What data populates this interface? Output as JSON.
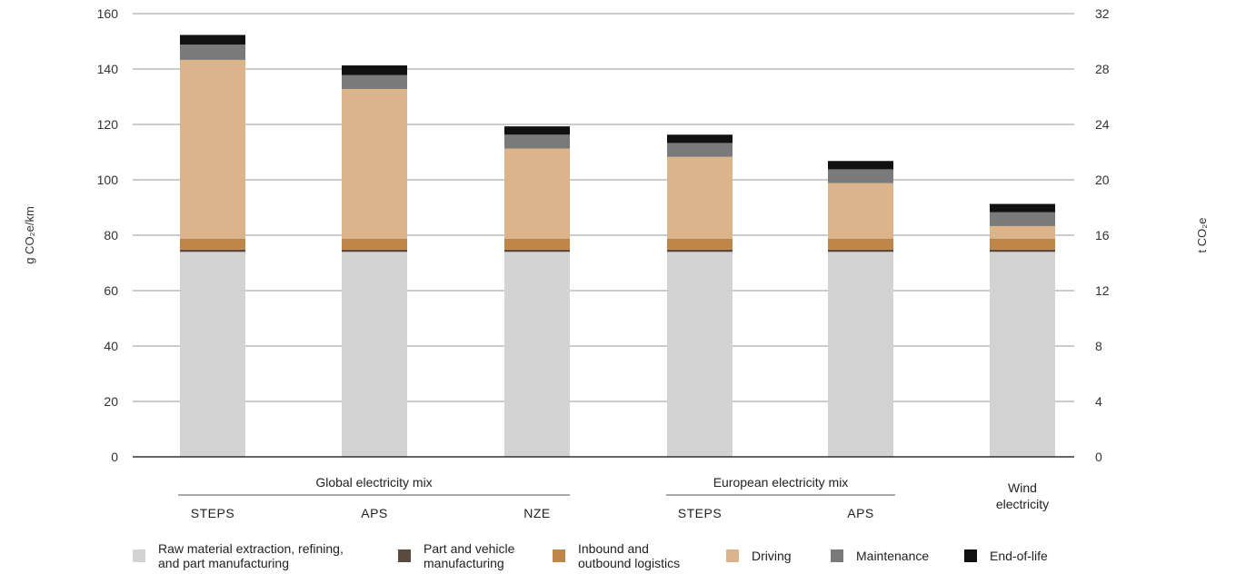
{
  "chart_data": {
    "type": "bar",
    "stacked": true,
    "categories": [
      "STEPS",
      "APS",
      "NZE",
      "STEPS",
      "APS",
      ""
    ],
    "groups": [
      {
        "label": "Global electricity mix",
        "members": [
          0,
          1,
          2
        ]
      },
      {
        "label": "European electricity mix",
        "members": [
          3,
          4
        ]
      },
      {
        "label": "Wind electricity",
        "members": [
          5
        ]
      }
    ],
    "series": [
      {
        "name": "Raw material extraction, refining, and part manufacturing",
        "color": "#d3d3d3",
        "values": [
          74,
          74,
          74,
          74,
          74,
          74
        ]
      },
      {
        "name": "Part and vehicle manufacturing",
        "color": "#5b4a3e",
        "values": [
          0.8,
          0.8,
          0.8,
          0.8,
          0.8,
          0.8
        ]
      },
      {
        "name": "Inbound and outbound logistics",
        "color": "#c08548",
        "values": [
          4,
          4,
          4,
          4,
          4,
          4
        ]
      },
      {
        "name": "Driving",
        "color": "#dbb48c",
        "values": [
          64.5,
          54,
          32.5,
          29.5,
          20,
          4.5
        ]
      },
      {
        "name": "Maintenance",
        "color": "#7a7a7a",
        "values": [
          5.5,
          5,
          5,
          5,
          5,
          5
        ]
      },
      {
        "name": "End-of-life",
        "color": "#111111",
        "values": [
          3.5,
          3.5,
          3,
          3,
          3,
          3
        ]
      }
    ],
    "ylabel": "g CO₂e/km",
    "ylim": [
      0,
      160
    ],
    "yticks": [
      0,
      20,
      40,
      60,
      80,
      100,
      120,
      140,
      160
    ],
    "y2label": "t CO₂e",
    "y2lim": [
      0,
      32
    ],
    "y2ticks": [
      0,
      4,
      8,
      12,
      16,
      20,
      24,
      28,
      32
    ],
    "grid": true,
    "legend_position": "bottom"
  }
}
